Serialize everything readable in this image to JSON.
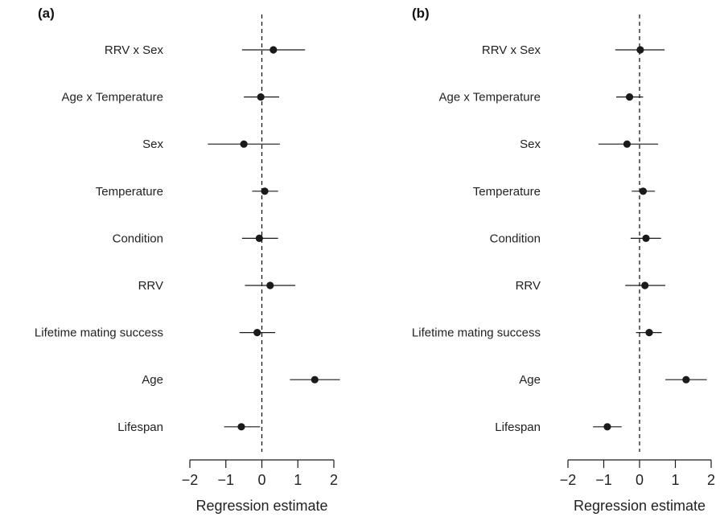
{
  "chart_data": [
    {
      "type": "scatter",
      "panel_label": "(a)",
      "xlabel": "Regression estimate",
      "ylabel": "",
      "xlim": [
        -2,
        2
      ],
      "xticks": [
        -2,
        -1,
        0,
        1,
        2
      ],
      "tick_labels": [
        "−2",
        "−1",
        "0",
        "1",
        "2"
      ],
      "reference_line": 0,
      "categories": [
        "RRV x Sex",
        "Age x Temperature",
        "Sex",
        "Temperature",
        "Condition",
        "RRV",
        "Lifetime mating success",
        "Age",
        "Lifespan"
      ],
      "estimates": [
        0.32,
        -0.03,
        -0.5,
        0.08,
        -0.07,
        0.23,
        -0.13,
        1.47,
        -0.57
      ],
      "lower": [
        -0.55,
        -0.5,
        -1.5,
        -0.27,
        -0.55,
        -0.47,
        -0.62,
        0.78,
        -1.05
      ],
      "upper": [
        1.2,
        0.48,
        0.5,
        0.45,
        0.45,
        0.93,
        0.37,
        2.17,
        -0.05
      ],
      "grid": false
    },
    {
      "type": "scatter",
      "panel_label": "(b)",
      "xlabel": "Regression estimate",
      "ylabel": "",
      "xlim": [
        -2,
        2
      ],
      "xticks": [
        -2,
        -1,
        0,
        1,
        2
      ],
      "tick_labels": [
        "−2",
        "−1",
        "0",
        "1",
        "2"
      ],
      "reference_line": 0,
      "categories": [
        "RRV x Sex",
        "Age x Temperature",
        "Sex",
        "Temperature",
        "Condition",
        "RRV",
        "Lifetime mating success",
        "Age",
        "Lifespan"
      ],
      "estimates": [
        0.02,
        -0.28,
        -0.35,
        0.1,
        0.18,
        0.15,
        0.27,
        1.3,
        -0.9
      ],
      "lower": [
        -0.68,
        -0.65,
        -1.15,
        -0.22,
        -0.25,
        -0.4,
        -0.1,
        0.72,
        -1.3
      ],
      "upper": [
        0.7,
        0.1,
        0.52,
        0.43,
        0.6,
        0.72,
        0.62,
        1.88,
        -0.5
      ],
      "grid": false
    }
  ],
  "style": {
    "point_color": "#1a1a1a",
    "line_color": "#1a1a1a",
    "axis_color": "#1a1a1a",
    "reference_line_color": "#1a1a1a"
  }
}
